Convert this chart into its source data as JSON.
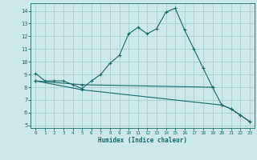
{
  "xlabel": "Humidex (Indice chaleur)",
  "background_color": "#cce8e8",
  "grid_color": "#aad0d0",
  "line_color": "#1a6b6b",
  "xlim": [
    -0.5,
    23.5
  ],
  "ylim": [
    4.8,
    14.6
  ],
  "yticks": [
    5,
    6,
    7,
    8,
    9,
    10,
    11,
    12,
    13,
    14
  ],
  "xticks": [
    0,
    1,
    2,
    3,
    4,
    5,
    6,
    7,
    8,
    9,
    10,
    11,
    12,
    13,
    14,
    15,
    16,
    17,
    18,
    19,
    20,
    21,
    22,
    23
  ],
  "line1_x": [
    0,
    1,
    2,
    3,
    4,
    5,
    6,
    7,
    8,
    9,
    10,
    11,
    12,
    13,
    14,
    15,
    16,
    17,
    18,
    19,
    20,
    21,
    22,
    23
  ],
  "line1_y": [
    9.1,
    8.5,
    8.5,
    8.5,
    8.2,
    7.9,
    8.5,
    9.0,
    9.9,
    10.5,
    12.2,
    12.7,
    12.2,
    12.6,
    13.9,
    14.2,
    12.5,
    11.0,
    9.5,
    8.0,
    6.6,
    6.3,
    5.8,
    5.3
  ],
  "line2_x": [
    0,
    5,
    19
  ],
  "line2_y": [
    8.5,
    8.2,
    8.0
  ],
  "line3_x": [
    0,
    5,
    20,
    21,
    22,
    23
  ],
  "line3_y": [
    8.5,
    7.8,
    6.6,
    6.3,
    5.8,
    5.3
  ]
}
